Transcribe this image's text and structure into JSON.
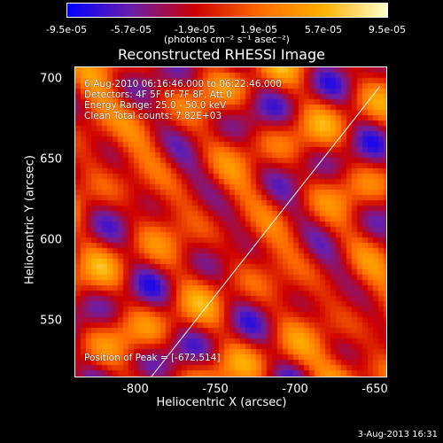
{
  "colorbar": {
    "ticks": [
      "-9.5e-05",
      "-5.7e-05",
      "-1.9e-05",
      "1.9e-05",
      "5.7e-05",
      "9.5e-05"
    ],
    "unit": "(photons cm⁻² s⁻¹ asec⁻²)"
  },
  "title": "Reconstructed RHESSI Image",
  "annotations": {
    "time": "6-Aug-2010 06:16:46.000 to 06:22:46.000",
    "detectors": "Detectors: 4F 5F 6F 7F 8F, Att 0",
    "energy": "Energy Range: 25.0 - 50.0 keV",
    "clean": "Clean     Total counts: 7.82E+03",
    "peak": "Position of Peak = [-672,514]"
  },
  "axes": {
    "xlabel": "Heliocentric X (arcsec)",
    "ylabel": "Heliocentric Y (arcsec)",
    "xticks": [
      "-800",
      "-750",
      "-700",
      "-650"
    ],
    "yticks": [
      "700",
      "650",
      "600",
      "550"
    ]
  },
  "timestamp": "3-Aug-2013 16:31",
  "chart_data": {
    "type": "heatmap",
    "title": "Reconstructed RHESSI Image",
    "xlabel": "Heliocentric X (arcsec)",
    "ylabel": "Heliocentric Y (arcsec)",
    "xlim": [
      -838,
      -642
    ],
    "ylim": [
      512,
      706
    ],
    "clim": [
      -9.5e-05,
      9.5e-05
    ],
    "peak": [
      -672,
      514
    ],
    "colormap_stops": [
      "#0000ff",
      "#6a1faa",
      "#cc0000",
      "#ff6a00",
      "#ffb000",
      "#ffffcc"
    ],
    "limb_line": [
      [
        -790,
        512
      ],
      [
        -646,
        694
      ]
    ]
  }
}
